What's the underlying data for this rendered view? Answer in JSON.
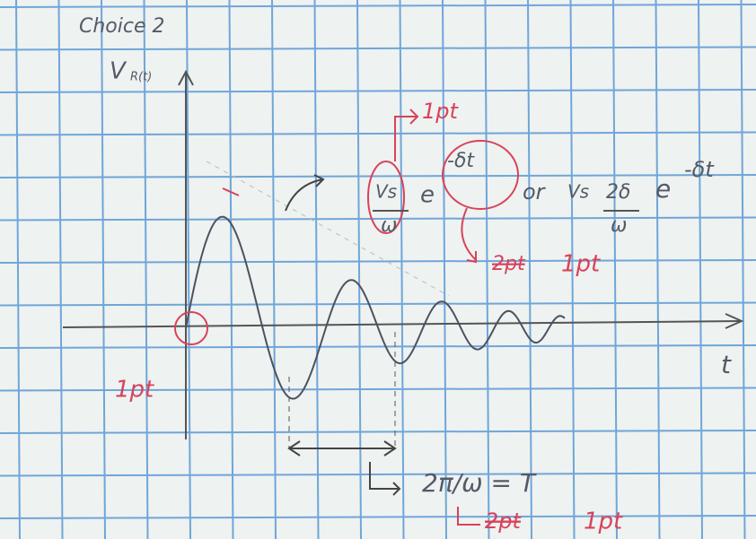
{
  "header": {
    "title": "Choice 2"
  },
  "axes": {
    "y_label": "V",
    "y_subscript": "R(t)",
    "x_label": "t"
  },
  "annotations": {
    "top_point": "1pt",
    "envelope": {
      "numerator": "Vs",
      "denominator": "ω",
      "base": "e",
      "exponent": "-δt"
    },
    "or": "or",
    "alternative": {
      "prefix": "Vs",
      "numerator": "2δ",
      "denominator": "ω",
      "base": "e",
      "exponent": "-δt"
    },
    "envelope_points": {
      "crossed": "2pt",
      "score": "1pt"
    },
    "origin_point": "1pt",
    "period": "2π/ω = T",
    "period_points": {
      "crossed": "2pt",
      "score": "1pt"
    }
  }
}
